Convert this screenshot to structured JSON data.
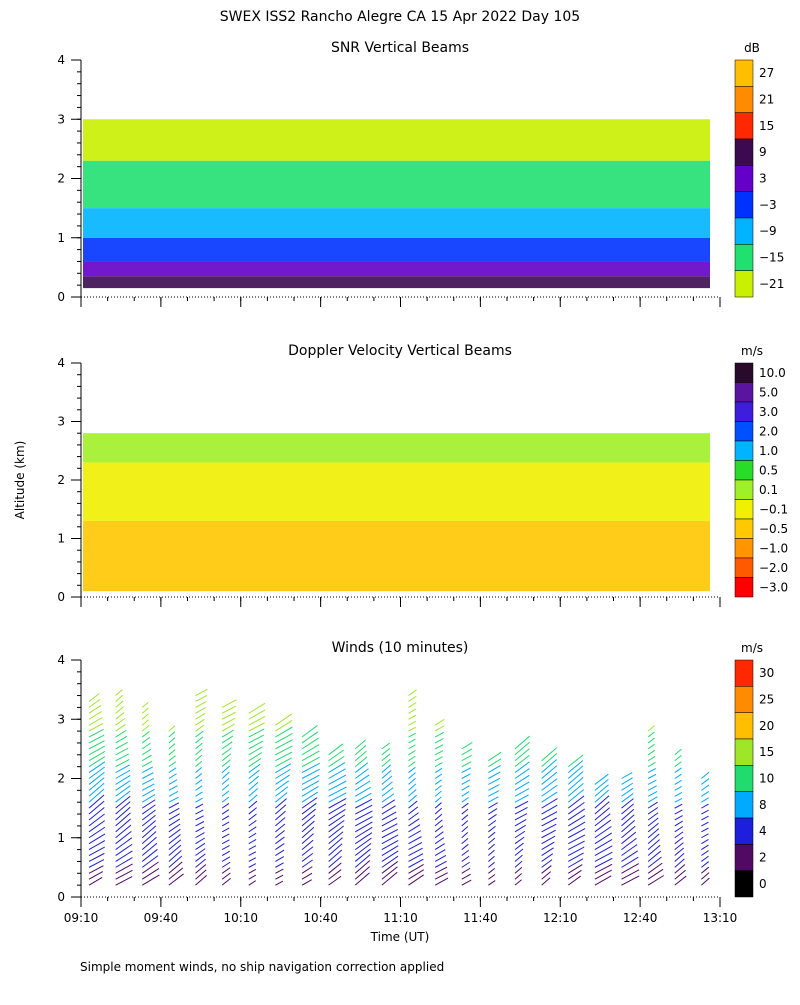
{
  "title": "SWEX ISS2 Rancho Alegre CA  15 Apr 2022 Day 105",
  "ylabel": "Altitude (km)",
  "xlabel": "Time (UT)",
  "footnote": "Simple moment winds, no ship navigation correction applied",
  "x_ticks": [
    "09:10",
    "09:40",
    "10:10",
    "10:40",
    "11:10",
    "11:40",
    "12:10",
    "12:40",
    "13:10"
  ],
  "y_ticks": [
    "0",
    "1",
    "2",
    "3",
    "4"
  ],
  "chart_data": [
    {
      "type": "heatmap",
      "title": "SNR Vertical Beams",
      "colorbar_unit": "dB",
      "colorbar_labels": [
        "27",
        "21",
        "15",
        "9",
        "3",
        "−3",
        "−9",
        "−15",
        "−21"
      ],
      "colorbar_colors": [
        "#ffbe00",
        "#ff8c00",
        "#ff2800",
        "#3c0a50",
        "#6400c8",
        "#0032ff",
        "#00b4ff",
        "#20e070",
        "#c8f000"
      ],
      "x_range": [
        "09:10",
        "13:10"
      ],
      "ylim": [
        0,
        4
      ],
      "layers": [
        {
          "alt_bottom": 0.15,
          "alt_top": 0.35,
          "level": "9"
        },
        {
          "alt_bottom": 0.35,
          "alt_top": 0.6,
          "level": "3"
        },
        {
          "alt_bottom": 0.6,
          "alt_top": 1.0,
          "level": "−3"
        },
        {
          "alt_bottom": 1.0,
          "alt_top": 1.5,
          "level": "−9"
        },
        {
          "alt_bottom": 1.5,
          "alt_top": 2.3,
          "level": "−15"
        },
        {
          "alt_bottom": 2.3,
          "alt_top": 3.0,
          "level": "−21"
        }
      ]
    },
    {
      "type": "heatmap",
      "title": "Doppler Velocity Vertical Beams",
      "colorbar_unit": "m/s",
      "colorbar_labels": [
        "10.0",
        "5.0",
        "3.0",
        "2.0",
        "1.0",
        "0.5",
        "0.1",
        "−0.1",
        "−0.5",
        "−1.0",
        "−2.0",
        "−3.0"
      ],
      "colorbar_colors": [
        "#2a0a2a",
        "#5a14a0",
        "#3c1edc",
        "#0050ff",
        "#00b4ff",
        "#28dc28",
        "#a0f028",
        "#f0f000",
        "#ffc800",
        "#ff9600",
        "#ff5a00",
        "#ff0000"
      ],
      "x_range": [
        "09:10",
        "13:10"
      ],
      "ylim": [
        0,
        4
      ],
      "layers": [
        {
          "alt_bottom": 0.1,
          "alt_top": 1.3,
          "level": "−0.5"
        },
        {
          "alt_bottom": 1.3,
          "alt_top": 2.3,
          "level": "−0.1"
        },
        {
          "alt_bottom": 2.3,
          "alt_top": 2.8,
          "level": "0.1"
        }
      ]
    },
    {
      "type": "scatter",
      "title": "Winds (10 minutes)",
      "colorbar_unit": "m/s",
      "colorbar_labels": [
        "30",
        "25",
        "20",
        "15",
        "10",
        "8",
        "4",
        "2",
        "0"
      ],
      "colorbar_colors": [
        "#ff2800",
        "#ff8c00",
        "#ffbe00",
        "#a0e628",
        "#20dc6e",
        "#00aaff",
        "#1e1edc",
        "#500a64",
        "#000000"
      ],
      "x": [
        "09:10",
        "09:20",
        "09:30",
        "09:40",
        "09:50",
        "10:00",
        "10:10",
        "10:20",
        "10:30",
        "10:40",
        "10:50",
        "11:00",
        "11:10",
        "11:20",
        "11:30",
        "11:40",
        "11:50",
        "12:00",
        "12:10",
        "12:20",
        "12:30",
        "12:40",
        "12:50",
        "13:00"
      ],
      "ylim": [
        0,
        4
      ],
      "profile_top_km": [
        3.4,
        3.5,
        3.3,
        2.85,
        3.5,
        3.3,
        3.2,
        3.0,
        2.8,
        2.5,
        2.6,
        2.6,
        3.5,
        3.0,
        2.6,
        2.4,
        2.6,
        2.4,
        2.3,
        2.0,
        2.1,
        2.9,
        2.5,
        2.1
      ]
    }
  ]
}
